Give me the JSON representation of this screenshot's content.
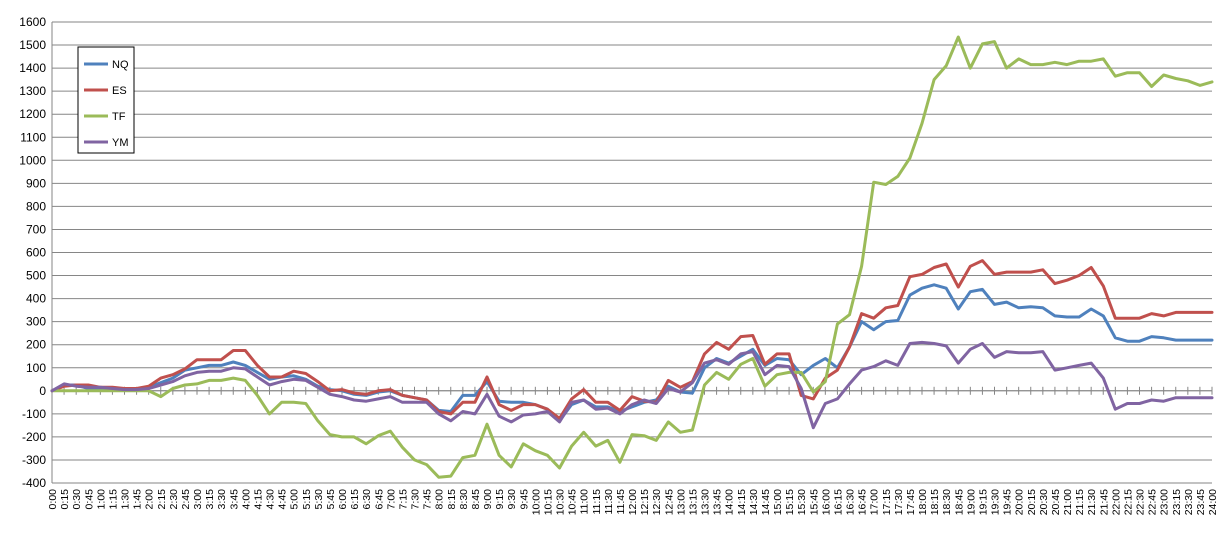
{
  "chart_data": {
    "type": "line",
    "title": "",
    "xlabel": "",
    "ylabel": "",
    "ylim": [
      -400,
      1600
    ],
    "ytick_step": 100,
    "grid": "horizontal",
    "legend_position": "top-left",
    "x": [
      "0:00",
      "0:15",
      "0:30",
      "0:45",
      "1:00",
      "1:15",
      "1:30",
      "1:45",
      "2:00",
      "2:15",
      "2:30",
      "2:45",
      "3:00",
      "3:15",
      "3:30",
      "3:45",
      "4:00",
      "4:15",
      "4:30",
      "4:45",
      "5:00",
      "5:15",
      "5:30",
      "5:45",
      "6:00",
      "6:15",
      "6:30",
      "6:45",
      "7:00",
      "7:15",
      "7:30",
      "7:45",
      "8:00",
      "8:15",
      "8:30",
      "8:45",
      "9:00",
      "9:15",
      "9:30",
      "9:45",
      "10:00",
      "10:15",
      "10:30",
      "10:45",
      "11:00",
      "11:15",
      "11:30",
      "11:45",
      "12:00",
      "12:15",
      "12:30",
      "12:45",
      "13:00",
      "13:15",
      "13:30",
      "13:45",
      "14:00",
      "14:15",
      "14:30",
      "14:45",
      "15:00",
      "15:15",
      "15:30",
      "15:45",
      "16:00",
      "16:15",
      "16:30",
      "16:45",
      "17:00",
      "17:15",
      "17:30",
      "17:45",
      "18:00",
      "18:15",
      "18:30",
      "18:45",
      "19:00",
      "19:15",
      "19:30",
      "19:45",
      "20:00",
      "20:15",
      "20:30",
      "20:45",
      "21:00",
      "21:15",
      "21:30",
      "21:45",
      "22:00",
      "22:15",
      "22:30",
      "22:45",
      "23:00",
      "23:15",
      "23:30",
      "23:45",
      "24:00"
    ],
    "series": [
      {
        "name": "NQ",
        "color": "#4f81bd",
        "values": [
          0,
          25,
          25,
          10,
          10,
          10,
          5,
          5,
          15,
          35,
          55,
          90,
          100,
          110,
          110,
          125,
          110,
          80,
          50,
          60,
          65,
          50,
          20,
          5,
          0,
          -15,
          -20,
          -5,
          0,
          -20,
          -30,
          -40,
          -85,
          -90,
          -20,
          -20,
          40,
          -45,
          -50,
          -50,
          -60,
          -80,
          -130,
          -60,
          -40,
          -70,
          -70,
          -90,
          -70,
          -50,
          -40,
          20,
          -5,
          -10,
          100,
          140,
          120,
          150,
          180,
          110,
          140,
          135,
          70,
          110,
          140,
          100,
          190,
          300,
          265,
          300,
          305,
          415,
          445,
          460,
          445,
          355,
          430,
          440,
          375,
          385,
          360,
          365,
          360,
          325,
          320,
          320,
          355,
          325,
          230,
          215,
          215,
          235,
          230,
          220,
          220,
          220,
          220
        ]
      },
      {
        "name": "ES",
        "color": "#c0504d",
        "values": [
          0,
          20,
          25,
          25,
          15,
          15,
          10,
          10,
          20,
          55,
          70,
          95,
          135,
          135,
          135,
          175,
          175,
          110,
          60,
          60,
          85,
          75,
          40,
          0,
          5,
          -10,
          -15,
          0,
          5,
          -20,
          -30,
          -40,
          -90,
          -100,
          -50,
          -50,
          60,
          -60,
          -85,
          -60,
          -60,
          -80,
          -120,
          -35,
          5,
          -50,
          -50,
          -85,
          -25,
          -45,
          -50,
          45,
          15,
          40,
          160,
          210,
          180,
          235,
          240,
          115,
          160,
          160,
          -20,
          -35,
          55,
          90,
          190,
          335,
          315,
          360,
          370,
          495,
          505,
          535,
          550,
          450,
          540,
          565,
          505,
          515,
          515,
          515,
          525,
          465,
          480,
          500,
          535,
          455,
          315,
          315,
          315,
          335,
          325,
          340,
          340,
          340,
          340
        ]
      },
      {
        "name": "TF",
        "color": "#9bbb59",
        "values": [
          0,
          0,
          0,
          0,
          0,
          0,
          0,
          0,
          0,
          -25,
          10,
          25,
          30,
          45,
          45,
          55,
          45,
          -20,
          -100,
          -50,
          -50,
          -55,
          -130,
          -190,
          -200,
          -200,
          -230,
          -195,
          -175,
          -245,
          -300,
          -320,
          -375,
          -370,
          -290,
          -280,
          -145,
          -280,
          -330,
          -230,
          -260,
          -280,
          -335,
          -240,
          -180,
          -240,
          -215,
          -310,
          -190,
          -195,
          -215,
          -135,
          -180,
          -170,
          25,
          80,
          50,
          115,
          140,
          20,
          70,
          80,
          80,
          -5,
          40,
          290,
          330,
          540,
          905,
          895,
          930,
          1010,
          1160,
          1350,
          1410,
          1535,
          1400,
          1505,
          1515,
          1400,
          1440,
          1415,
          1415,
          1425,
          1415,
          1430,
          1430,
          1440,
          1365,
          1380,
          1380,
          1320,
          1370,
          1355,
          1345,
          1325,
          1340
        ]
      },
      {
        "name": "YM",
        "color": "#8064a2",
        "values": [
          0,
          30,
          20,
          15,
          15,
          10,
          5,
          5,
          10,
          25,
          40,
          65,
          80,
          85,
          85,
          100,
          95,
          60,
          25,
          40,
          50,
          45,
          15,
          -15,
          -25,
          -40,
          -45,
          -35,
          -25,
          -50,
          -50,
          -50,
          -100,
          -130,
          -90,
          -100,
          -15,
          -110,
          -135,
          -105,
          -100,
          -90,
          -135,
          -50,
          -40,
          -80,
          -75,
          -100,
          -60,
          -40,
          -55,
          10,
          -5,
          35,
          120,
          135,
          115,
          160,
          170,
          70,
          110,
          105,
          10,
          -160,
          -55,
          -35,
          30,
          90,
          105,
          130,
          110,
          205,
          210,
          205,
          195,
          120,
          180,
          205,
          145,
          170,
          165,
          165,
          170,
          90,
          100,
          110,
          120,
          55,
          -80,
          -55,
          -55,
          -40,
          -45,
          -30,
          -30,
          -30,
          -30
        ]
      }
    ]
  }
}
